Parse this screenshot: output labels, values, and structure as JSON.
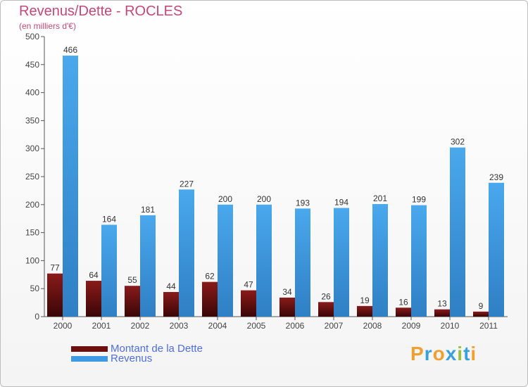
{
  "title": "Revenus/Dette - ROCLES",
  "subtitle": "(en milliers d'€)",
  "legend": [
    {
      "label": "Montant de la Dette",
      "color": "#6b0f0f"
    },
    {
      "label": "Revenus",
      "color": "#3f9ae2"
    }
  ],
  "logo": {
    "letters": [
      "P",
      "r",
      "o",
      "x",
      "i",
      "t",
      "i"
    ],
    "colors": [
      "#f0a030",
      "#3aa0dc",
      "#f0a030",
      "#3aa0dc",
      "#9ac040",
      "#3aa0dc",
      "#f0a030"
    ]
  },
  "colors": {
    "debt": "#6b0f0f",
    "revenue": "#3f9ae2",
    "title": "#c2487a"
  },
  "chart_data": {
    "type": "bar",
    "categories": [
      "2000",
      "2001",
      "2002",
      "2003",
      "2004",
      "2005",
      "2006",
      "2007",
      "2008",
      "2009",
      "2010",
      "2011"
    ],
    "series": [
      {
        "name": "Montant de la Dette",
        "values": [
          77,
          64,
          55,
          44,
          62,
          47,
          34,
          26,
          19,
          16,
          13,
          9
        ]
      },
      {
        "name": "Revenus",
        "values": [
          466,
          164,
          181,
          227,
          200,
          200,
          193,
          194,
          201,
          199,
          302,
          239
        ]
      }
    ],
    "ylim": [
      0,
      500
    ],
    "yticks": [
      0,
      50,
      100,
      150,
      200,
      250,
      300,
      350,
      400,
      450,
      500
    ],
    "grid": false,
    "legend_position": "bottom-left"
  }
}
